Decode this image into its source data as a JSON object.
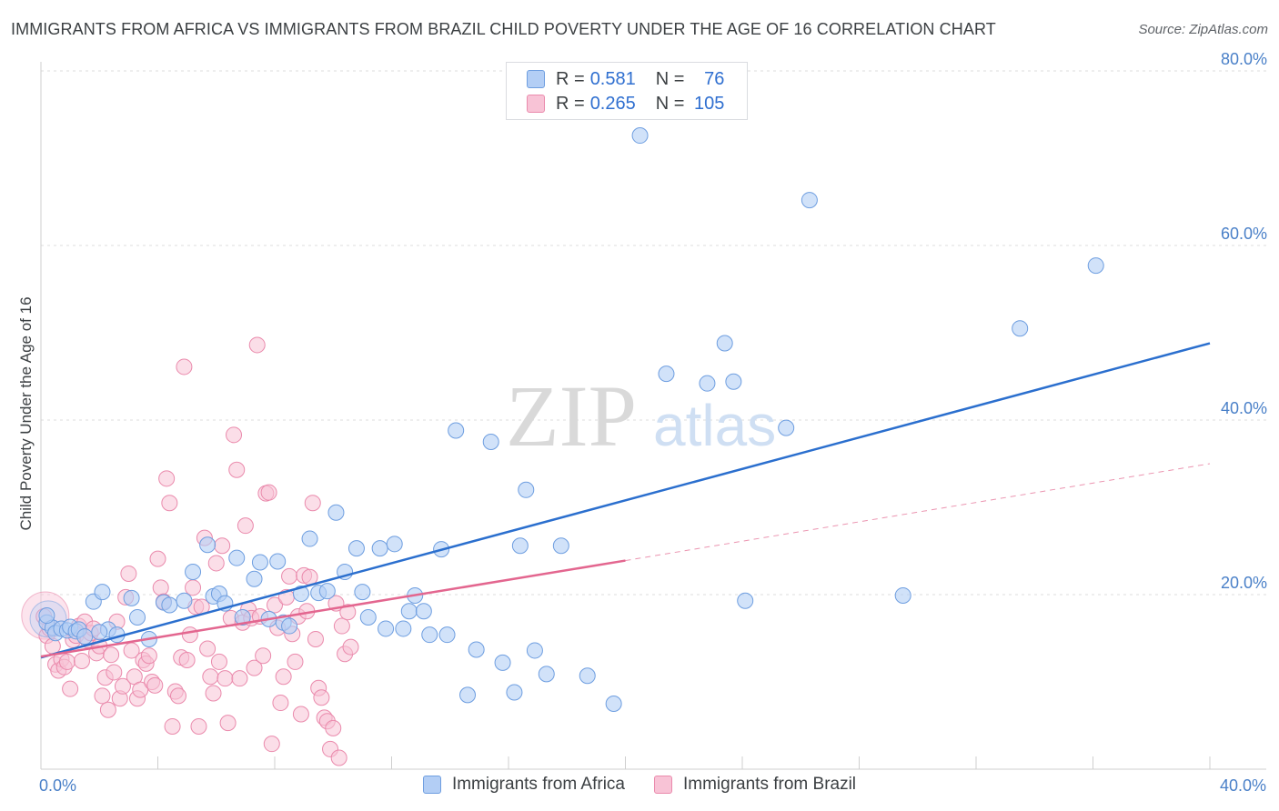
{
  "header": {
    "title": "IMMIGRANTS FROM AFRICA VS IMMIGRANTS FROM BRAZIL CHILD POVERTY UNDER THE AGE OF 16 CORRELATION CHART",
    "source": "Source: ZipAtlas.com"
  },
  "watermark": {
    "zip": "ZIP",
    "atlas": "atlas"
  },
  "legend": {
    "r_label": "R =",
    "n_label": "N =",
    "africa": {
      "r": "0.581",
      "n": "76"
    },
    "brazil": {
      "r": "0.265",
      "n": "105"
    }
  },
  "colors": {
    "africa_fill": "#b3cef5",
    "africa_stroke": "#6e9ee0",
    "africa_line": "#2b6fce",
    "brazil_fill": "#f8c3d6",
    "brazil_stroke": "#ea8aac",
    "brazil_line": "#e3668f",
    "tick_text": "#4a80c8"
  },
  "chart_data": {
    "type": "scatter",
    "title": "IMMIGRANTS FROM AFRICA VS IMMIGRANTS FROM BRAZIL CHILD POVERTY UNDER THE AGE OF 16 CORRELATION CHART",
    "xlabel": "",
    "ylabel": "Child Poverty Under the Age of 16",
    "xlim": [
      0,
      40
    ],
    "ylim": [
      0,
      80
    ],
    "x_tick_labels": [
      {
        "value": 0,
        "label": "0.0%"
      },
      {
        "value": 40,
        "label": "40.0%"
      }
    ],
    "y_tick_labels": [
      {
        "value": 20,
        "label": "20.0%"
      },
      {
        "value": 40,
        "label": "40.0%"
      },
      {
        "value": 60,
        "label": "60.0%"
      },
      {
        "value": 80,
        "label": "80.0%"
      }
    ],
    "x_minor_ticks": [
      4,
      8,
      12,
      16,
      20,
      24,
      28,
      32,
      36,
      40
    ],
    "grid": "horizontal-dashed",
    "legend_position": "top-center",
    "series": [
      {
        "name": "Immigrants from Africa",
        "R": 0.581,
        "N": 76,
        "trend": {
          "x": [
            0,
            40
          ],
          "y": [
            12.8,
            48.8
          ],
          "style": "solid"
        },
        "points": [
          [
            0.2,
            16.8
          ],
          [
            0.4,
            16.2
          ],
          [
            0.5,
            15.6
          ],
          [
            0.7,
            16.1
          ],
          [
            0.9,
            15.9
          ],
          [
            1.0,
            16.3
          ],
          [
            1.2,
            15.8
          ],
          [
            1.3,
            16.0
          ],
          [
            1.5,
            15.2
          ],
          [
            1.8,
            19.2
          ],
          [
            2.1,
            20.3
          ],
          [
            2.3,
            16.0
          ],
          [
            2.6,
            15.4
          ],
          [
            3.1,
            19.6
          ],
          [
            3.3,
            17.4
          ],
          [
            3.7,
            14.9
          ],
          [
            4.2,
            19.1
          ],
          [
            4.4,
            18.8
          ],
          [
            4.9,
            19.3
          ],
          [
            5.2,
            22.6
          ],
          [
            5.7,
            25.7
          ],
          [
            5.9,
            19.8
          ],
          [
            6.1,
            20.1
          ],
          [
            6.3,
            19.0
          ],
          [
            6.7,
            24.2
          ],
          [
            6.9,
            17.4
          ],
          [
            7.3,
            21.8
          ],
          [
            7.5,
            23.7
          ],
          [
            7.8,
            17.2
          ],
          [
            8.1,
            23.8
          ],
          [
            8.3,
            16.8
          ],
          [
            8.5,
            16.4
          ],
          [
            8.9,
            20.1
          ],
          [
            9.2,
            26.4
          ],
          [
            9.5,
            20.2
          ],
          [
            9.8,
            20.4
          ],
          [
            10.1,
            29.4
          ],
          [
            10.4,
            22.6
          ],
          [
            10.8,
            25.3
          ],
          [
            11.0,
            20.3
          ],
          [
            11.2,
            17.4
          ],
          [
            11.6,
            25.3
          ],
          [
            11.8,
            16.1
          ],
          [
            12.1,
            25.8
          ],
          [
            12.4,
            16.1
          ],
          [
            12.6,
            18.1
          ],
          [
            12.8,
            19.9
          ],
          [
            13.1,
            18.1
          ],
          [
            13.3,
            15.4
          ],
          [
            13.7,
            25.2
          ],
          [
            13.9,
            15.4
          ],
          [
            14.2,
            38.8
          ],
          [
            14.6,
            8.5
          ],
          [
            14.9,
            13.7
          ],
          [
            15.4,
            37.5
          ],
          [
            15.8,
            12.2
          ],
          [
            16.2,
            8.8
          ],
          [
            16.4,
            25.6
          ],
          [
            16.6,
            32.0
          ],
          [
            16.9,
            13.6
          ],
          [
            17.3,
            10.9
          ],
          [
            17.8,
            25.6
          ],
          [
            18.7,
            10.7
          ],
          [
            19.6,
            7.5
          ],
          [
            20.5,
            72.6
          ],
          [
            21.4,
            45.3
          ],
          [
            22.8,
            44.2
          ],
          [
            23.4,
            48.8
          ],
          [
            23.7,
            44.4
          ],
          [
            24.1,
            19.3
          ],
          [
            25.5,
            39.1
          ],
          [
            26.3,
            65.2
          ],
          [
            29.5,
            19.9
          ],
          [
            33.5,
            50.5
          ],
          [
            36.1,
            57.7
          ],
          [
            0.2,
            17.6
          ],
          [
            2.0,
            15.7
          ]
        ]
      },
      {
        "name": "Immigrants from Brazil",
        "R": 0.265,
        "N": 105,
        "trend": {
          "x": [
            0,
            20
          ],
          "y": [
            12.9,
            23.9
          ],
          "style": "solid",
          "extension": {
            "x": [
              20,
              40
            ],
            "y": [
              23.9,
              35.0
            ],
            "style": "dashed"
          }
        },
        "points": [
          [
            0.1,
            17.5
          ],
          [
            0.2,
            15.3
          ],
          [
            0.3,
            16.1
          ],
          [
            0.4,
            14.1
          ],
          [
            0.5,
            12.0
          ],
          [
            0.6,
            11.3
          ],
          [
            0.7,
            12.6
          ],
          [
            0.8,
            11.7
          ],
          [
            0.9,
            12.3
          ],
          [
            1.0,
            9.2
          ],
          [
            1.1,
            14.8
          ],
          [
            1.2,
            15.3
          ],
          [
            1.3,
            16.4
          ],
          [
            1.4,
            12.4
          ],
          [
            1.5,
            16.9
          ],
          [
            1.6,
            14.8
          ],
          [
            1.7,
            15.6
          ],
          [
            1.8,
            16.1
          ],
          [
            1.9,
            13.3
          ],
          [
            2.0,
            14.1
          ],
          [
            2.1,
            8.4
          ],
          [
            2.2,
            10.5
          ],
          [
            2.3,
            6.8
          ],
          [
            2.4,
            13.1
          ],
          [
            2.5,
            11.1
          ],
          [
            2.6,
            16.9
          ],
          [
            2.7,
            8.1
          ],
          [
            2.8,
            9.5
          ],
          [
            2.9,
            19.7
          ],
          [
            3.0,
            22.4
          ],
          [
            3.1,
            13.6
          ],
          [
            3.2,
            10.6
          ],
          [
            3.3,
            8.1
          ],
          [
            3.4,
            9.1
          ],
          [
            3.5,
            12.5
          ],
          [
            3.6,
            12.1
          ],
          [
            3.7,
            13.0
          ],
          [
            3.8,
            10.0
          ],
          [
            3.9,
            9.6
          ],
          [
            4.0,
            24.1
          ],
          [
            4.1,
            20.8
          ],
          [
            4.2,
            19.2
          ],
          [
            4.3,
            33.3
          ],
          [
            4.4,
            30.5
          ],
          [
            4.5,
            4.9
          ],
          [
            4.6,
            8.9
          ],
          [
            4.7,
            8.4
          ],
          [
            4.8,
            12.8
          ],
          [
            4.9,
            46.1
          ],
          [
            5.0,
            12.5
          ],
          [
            5.1,
            15.4
          ],
          [
            5.2,
            20.8
          ],
          [
            5.3,
            18.6
          ],
          [
            5.4,
            4.9
          ],
          [
            5.5,
            18.6
          ],
          [
            5.6,
            26.5
          ],
          [
            5.7,
            13.8
          ],
          [
            5.8,
            10.6
          ],
          [
            5.9,
            8.7
          ],
          [
            6.0,
            23.6
          ],
          [
            6.1,
            12.3
          ],
          [
            6.2,
            25.6
          ],
          [
            6.3,
            10.4
          ],
          [
            6.4,
            5.3
          ],
          [
            6.5,
            17.3
          ],
          [
            6.6,
            38.3
          ],
          [
            6.7,
            34.3
          ],
          [
            6.8,
            10.4
          ],
          [
            6.9,
            16.8
          ],
          [
            7.0,
            27.9
          ],
          [
            7.1,
            18.3
          ],
          [
            7.2,
            17.3
          ],
          [
            7.3,
            11.6
          ],
          [
            7.4,
            48.6
          ],
          [
            7.5,
            17.5
          ],
          [
            7.6,
            13.0
          ],
          [
            7.7,
            31.6
          ],
          [
            7.8,
            31.7
          ],
          [
            7.9,
            2.9
          ],
          [
            8.0,
            18.8
          ],
          [
            8.1,
            16.2
          ],
          [
            8.2,
            7.6
          ],
          [
            8.3,
            10.6
          ],
          [
            8.4,
            19.7
          ],
          [
            8.5,
            22.1
          ],
          [
            8.6,
            15.5
          ],
          [
            8.7,
            12.3
          ],
          [
            8.8,
            17.5
          ],
          [
            8.9,
            6.3
          ],
          [
            9.0,
            22.2
          ],
          [
            9.1,
            18.1
          ],
          [
            9.2,
            22.0
          ],
          [
            9.3,
            30.5
          ],
          [
            9.4,
            14.9
          ],
          [
            9.5,
            9.3
          ],
          [
            9.6,
            8.2
          ],
          [
            9.7,
            5.9
          ],
          [
            9.8,
            5.5
          ],
          [
            9.9,
            2.3
          ],
          [
            10.0,
            4.7
          ],
          [
            10.1,
            19.0
          ],
          [
            10.2,
            1.3
          ],
          [
            10.3,
            16.4
          ],
          [
            10.4,
            13.2
          ],
          [
            10.5,
            18.0
          ],
          [
            10.6,
            14.0
          ]
        ]
      }
    ],
    "bubble_note": "Large translucent circle near origin for each series."
  }
}
